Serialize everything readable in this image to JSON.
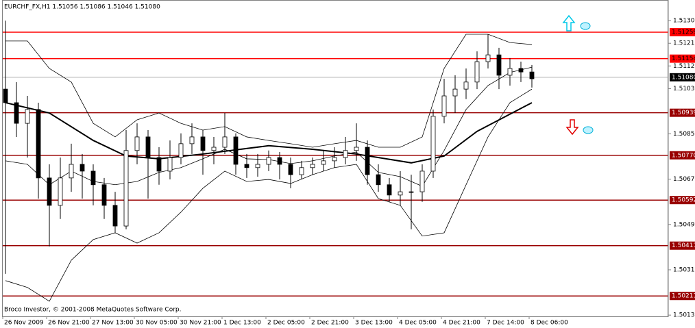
{
  "chart_data": {
    "type": "candlestick",
    "title": "EURCHF_FX,H1  1.51056 1.51086 1.51046 1.51080",
    "copyright": "Broco Investor, © 2001-2008 MetaQuotes Software Corp.",
    "categories": [
      "26 Nov 2009",
      null,
      null,
      null,
      "26 Nov 21:00",
      null,
      null,
      null,
      "27 Nov 13:00",
      null,
      null,
      null,
      "30 Nov 05:00",
      null,
      null,
      null,
      "30 Nov 21:00",
      null,
      null,
      null,
      "1 Dec 13:00",
      null,
      null,
      null,
      "2 Dec 05:00",
      null,
      null,
      null,
      "2 Dec 21:00",
      null,
      null,
      null,
      "3 Dec 13:00",
      null,
      null,
      null,
      "4 Dec 05:00",
      null,
      null,
      null,
      "4 Dec 21:00",
      null,
      null,
      null,
      "7 Dec 14:00",
      null,
      null,
      null,
      "8 Dec 06:00"
    ],
    "open": [
      1.51033,
      1.50979,
      1.50897,
      1.50952,
      1.5068,
      1.50571,
      1.5068,
      1.50734,
      1.50707,
      1.50653,
      1.50571,
      1.50489,
      1.50789,
      1.50843,
      1.50761,
      1.50707,
      1.50761,
      1.50816,
      1.50843,
      1.50789,
      1.50802,
      1.50843,
      1.50734,
      1.50721,
      1.50734,
      1.50761,
      1.50734,
      1.50693,
      1.50721,
      1.50734,
      1.50748,
      1.50761,
      1.50789,
      1.50802,
      1.50693,
      1.50653,
      1.50612,
      1.50625,
      1.50625,
      1.50707,
      1.50925,
      1.51006,
      1.51033,
      1.51061,
      1.51142,
      1.51169,
      1.51088,
      1.51115,
      1.51101
    ],
    "high": [
      1.51305,
      1.51061,
      1.51006,
      1.50979,
      1.50734,
      1.50761,
      1.50816,
      1.50775,
      1.50734,
      1.5068,
      1.50625,
      1.5087,
      1.50897,
      1.5087,
      1.50802,
      1.50829,
      1.50857,
      1.50897,
      1.5087,
      1.50843,
      1.50938,
      1.50857,
      1.50775,
      1.50775,
      1.50789,
      1.50783,
      1.50761,
      1.50748,
      1.50761,
      1.50789,
      1.50802,
      1.50843,
      1.50897,
      1.50829,
      1.50734,
      1.5068,
      1.50707,
      1.50693,
      1.50734,
      1.50952,
      1.51074,
      1.51088,
      1.51115,
      1.51183,
      1.51251,
      1.51197,
      1.51156,
      1.51142,
      1.51129
    ],
    "low": [
      1.50299,
      1.50843,
      1.50761,
      1.50598,
      1.50408,
      1.50517,
      1.50625,
      1.50598,
      1.50571,
      1.50517,
      1.50462,
      1.50476,
      1.50734,
      1.50598,
      1.50653,
      1.50674,
      1.50734,
      1.50775,
      1.50693,
      1.50734,
      1.50775,
      1.50693,
      1.5068,
      1.50685,
      1.50707,
      1.50674,
      1.50639,
      1.50674,
      1.50693,
      1.50707,
      1.50721,
      1.50734,
      1.50748,
      1.50653,
      1.50625,
      1.50585,
      1.50571,
      1.50476,
      1.50585,
      1.5068,
      1.50897,
      1.50938,
      1.50993,
      1.51033,
      1.51115,
      1.51033,
      1.51047,
      1.51061,
      1.51039
    ],
    "close": [
      1.50979,
      1.50897,
      1.50952,
      1.5068,
      1.50571,
      1.5068,
      1.50734,
      1.50707,
      1.50653,
      1.50571,
      1.50489,
      1.50789,
      1.50843,
      1.50761,
      1.50707,
      1.50761,
      1.50816,
      1.50843,
      1.50789,
      1.50802,
      1.50843,
      1.50734,
      1.50721,
      1.50734,
      1.50761,
      1.50734,
      1.50693,
      1.50721,
      1.50734,
      1.50748,
      1.50761,
      1.50789,
      1.50802,
      1.50693,
      1.50653,
      1.50612,
      1.50625,
      1.50625,
      1.50707,
      1.50925,
      1.51006,
      1.51033,
      1.51061,
      1.51142,
      1.51169,
      1.51088,
      1.51115,
      1.51101,
      1.51074
    ],
    "indicators": [
      {
        "color": "#000000",
        "line_width": 2,
        "x": [
          0,
          4,
          8,
          11,
          14,
          18,
          24,
          28,
          32,
          37,
          40,
          43,
          48
        ],
        "values": [
          1.50979,
          1.50938,
          1.50829,
          1.50767,
          1.50756,
          1.50775,
          1.50808,
          1.50794,
          1.50775,
          1.5074,
          1.50767,
          1.50865,
          1.50979
        ]
      },
      {
        "color": "#000000",
        "line_width": 0.8,
        "x": [
          0,
          2,
          4,
          6,
          8,
          10,
          12,
          14,
          16,
          18,
          20,
          22,
          24,
          26,
          28,
          30,
          32,
          34,
          36,
          38,
          40,
          42,
          44,
          46,
          48
        ],
        "values": [
          1.51224,
          1.51224,
          1.51115,
          1.51061,
          1.50897,
          1.50843,
          1.50911,
          1.50938,
          1.50897,
          1.5087,
          1.50884,
          1.50843,
          1.50829,
          1.50816,
          1.50802,
          1.50816,
          1.50829,
          1.50802,
          1.50802,
          1.50843,
          1.51115,
          1.51251,
          1.51251,
          1.51218,
          1.5121
        ]
      },
      {
        "color": "#000000",
        "line_width": 0.8,
        "x": [
          0,
          2,
          4,
          6,
          8,
          10,
          12,
          14,
          16,
          18,
          20,
          22,
          24,
          26,
          28,
          30,
          32,
          34,
          36,
          38,
          40,
          42,
          44,
          46,
          48
        ],
        "values": [
          1.50748,
          1.50734,
          1.50653,
          1.50707,
          1.50666,
          1.50653,
          1.50666,
          1.50702,
          1.50721,
          1.50756,
          1.50794,
          1.50756,
          1.50753,
          1.50737,
          1.50748,
          1.50767,
          1.50783,
          1.50702,
          1.50685,
          1.50647,
          1.50789,
          1.50952,
          1.51047,
          1.51099,
          1.5112
        ]
      },
      {
        "color": "#000000",
        "line_width": 0.8,
        "x": [
          0,
          2,
          4,
          6,
          8,
          10,
          12,
          14,
          16,
          18,
          20,
          22,
          24,
          26,
          28,
          30,
          32,
          34,
          36,
          38,
          40,
          42,
          44,
          46,
          48
        ],
        "values": [
          1.50272,
          1.50245,
          1.5019,
          1.50353,
          1.50435,
          1.50462,
          1.50421,
          1.50462,
          1.50544,
          1.50639,
          1.50707,
          1.50666,
          1.50674,
          1.50658,
          1.50693,
          1.50721,
          1.50734,
          1.50598,
          1.50571,
          1.50449,
          1.50462,
          1.50653,
          1.50843,
          1.50979,
          1.51033
        ]
      }
    ],
    "levels": [
      {
        "value": 1.51259,
        "color": "#ff0000"
      },
      {
        "value": 1.51154,
        "color": "#ff0000"
      },
      {
        "value": 1.50939,
        "color": "#990000"
      },
      {
        "value": 1.5077,
        "label": "1.50770",
        "color": "#990000"
      },
      {
        "value": 1.50592,
        "color": "#990000"
      },
      {
        "value": 1.50411,
        "color": "#990000"
      },
      {
        "value": 1.50211,
        "color": "#990000"
      }
    ],
    "bid": {
      "value": 1.5108,
      "label": "1.51080"
    },
    "ylim": [
      1.5013,
      1.51387
    ],
    "yticks": [
      1.51305,
      1.51215,
      1.51125,
      1.51035,
      1.50855,
      1.50675,
      1.50495,
      1.50315,
      1.50135
    ]
  }
}
